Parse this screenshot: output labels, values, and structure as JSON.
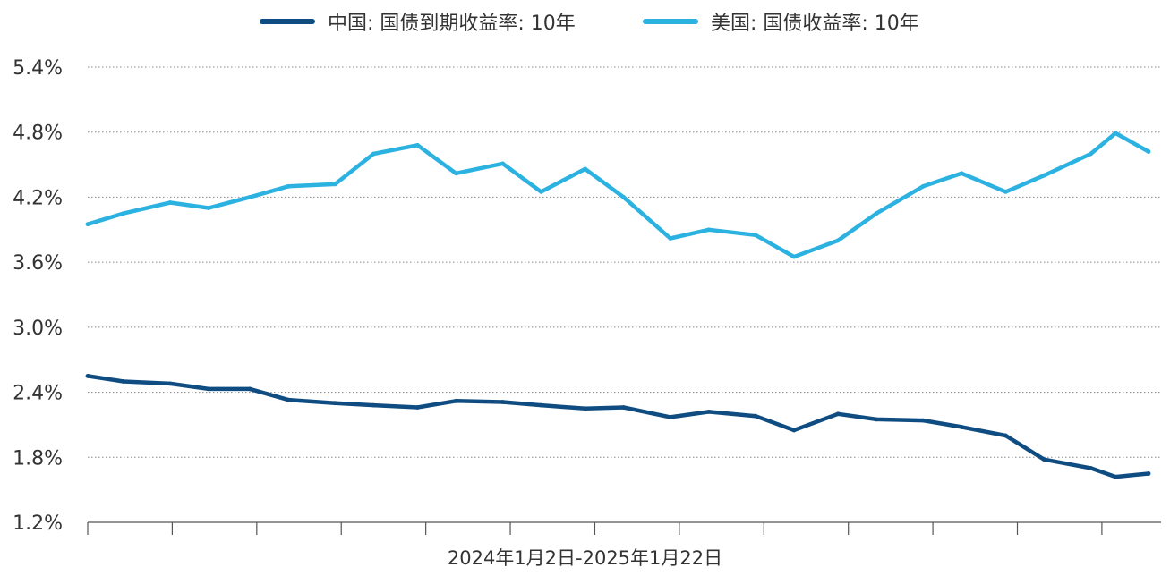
{
  "legend": [
    {
      "label": "中国: 国债到期收益率: 10年",
      "color": "#0f4c81"
    },
    {
      "label": "美国: 国债收益率: 10年",
      "color": "#2cb2e0"
    }
  ],
  "chart_data": {
    "type": "line",
    "xlabel": "2024年1月2日-2025年1月22日",
    "ylabel": "",
    "ylim": [
      1.2,
      5.4
    ],
    "yticks": [
      "5.4%",
      "4.8%",
      "4.2%",
      "3.6%",
      "3.0%",
      "2.4%",
      "1.8%",
      "1.2%"
    ],
    "grid": true,
    "legend_position": "top",
    "x": [
      "2024-01-02",
      "2024-01-15",
      "2024-02-01",
      "2024-02-15",
      "2024-03-01",
      "2024-03-15",
      "2024-04-01",
      "2024-04-15",
      "2024-05-01",
      "2024-05-15",
      "2024-06-01",
      "2024-06-15",
      "2024-07-01",
      "2024-07-15",
      "2024-08-01",
      "2024-08-15",
      "2024-09-01",
      "2024-09-15",
      "2024-10-01",
      "2024-10-15",
      "2024-11-01",
      "2024-11-15",
      "2024-12-01",
      "2024-12-15",
      "2025-01-01",
      "2025-01-10",
      "2025-01-22"
    ],
    "series": [
      {
        "name": "中国: 国债到期收益率: 10年",
        "color": "#0f4c81",
        "values": [
          2.55,
          2.5,
          2.48,
          2.43,
          2.43,
          2.33,
          2.3,
          2.28,
          2.26,
          2.32,
          2.31,
          2.28,
          2.25,
          2.26,
          2.17,
          2.22,
          2.18,
          2.05,
          2.2,
          2.15,
          2.14,
          2.08,
          2.0,
          1.78,
          1.7,
          1.62,
          1.65
        ]
      },
      {
        "name": "美国: 国债收益率: 10年",
        "color": "#2cb2e0",
        "values": [
          3.95,
          4.05,
          4.15,
          4.1,
          4.2,
          4.3,
          4.32,
          4.6,
          4.68,
          4.42,
          4.51,
          4.25,
          4.46,
          4.2,
          3.82,
          3.9,
          3.85,
          3.65,
          3.8,
          4.05,
          4.3,
          4.42,
          4.25,
          4.4,
          4.6,
          4.79,
          4.62
        ]
      }
    ]
  }
}
